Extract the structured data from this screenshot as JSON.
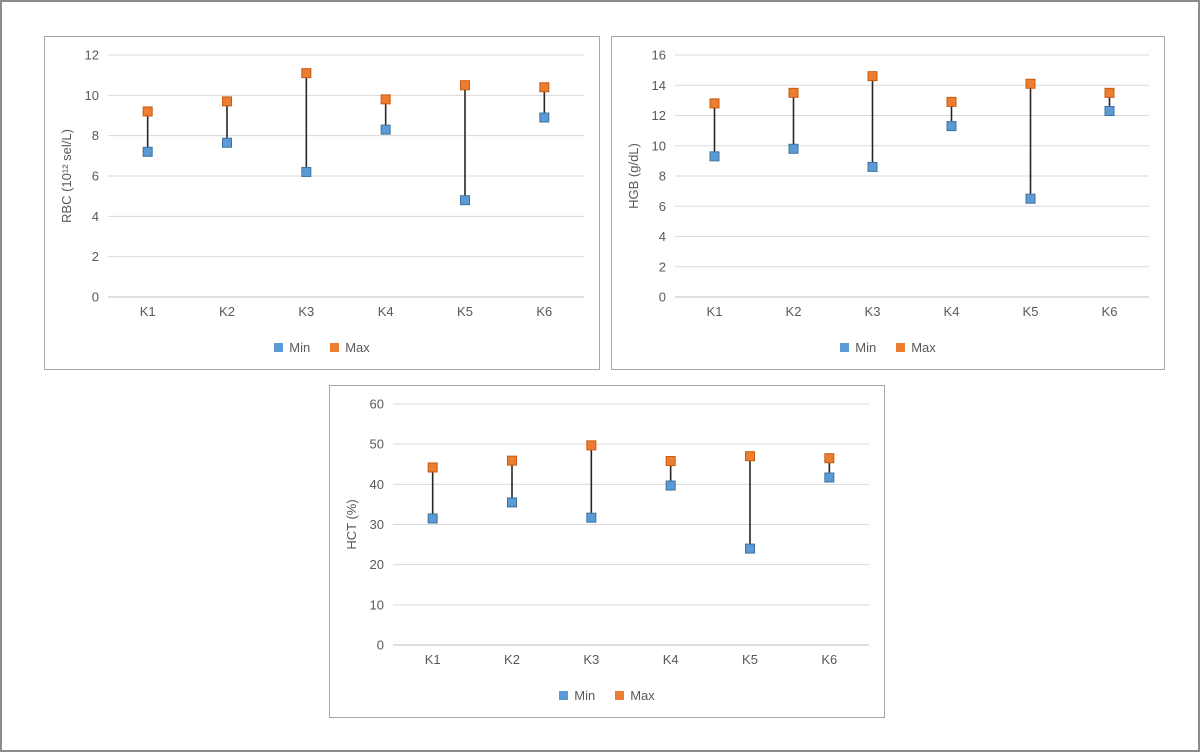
{
  "page": {
    "background": "#ffffff",
    "frame_color": "#8c8c8c"
  },
  "colors": {
    "min_fill": "#5b9bd5",
    "min_border": "#41719c",
    "max_fill": "#ed7d31",
    "max_border": "#c55a11",
    "hilo_line": "#262626",
    "grid": "#d9d9d9",
    "zero_axis": "#bfbfbf",
    "axis_text": "#595959",
    "chart_border": "#a6a6a6"
  },
  "chart_data": [
    {
      "id": "rbc",
      "type": "scatter",
      "subtype": "high-low-marker",
      "title": "",
      "ylabel": "RBC (10¹² sel/L)",
      "xlabel": "",
      "categories": [
        "K1",
        "K2",
        "K3",
        "K4",
        "K5",
        "K6"
      ],
      "series": [
        {
          "name": "Min",
          "values": [
            7.2,
            7.65,
            6.2,
            8.3,
            4.8,
            8.9
          ]
        },
        {
          "name": "Max",
          "values": [
            9.2,
            9.7,
            11.1,
            9.8,
            10.5,
            10.4
          ]
        }
      ],
      "ylim": [
        0,
        12
      ],
      "ystep": 2,
      "grid": true,
      "legend_position": "bottom"
    },
    {
      "id": "hgb",
      "type": "scatter",
      "subtype": "high-low-marker",
      "title": "",
      "ylabel": "HGB (g/dL)",
      "xlabel": "",
      "categories": [
        "K1",
        "K2",
        "K3",
        "K4",
        "K5",
        "K6"
      ],
      "series": [
        {
          "name": "Min",
          "values": [
            9.3,
            9.8,
            8.6,
            11.3,
            6.5,
            12.3
          ]
        },
        {
          "name": "Max",
          "values": [
            12.8,
            13.5,
            14.6,
            12.9,
            14.1,
            13.5
          ]
        }
      ],
      "ylim": [
        0,
        16
      ],
      "ystep": 2,
      "grid": true,
      "legend_position": "bottom"
    },
    {
      "id": "hct",
      "type": "scatter",
      "subtype": "high-low-marker",
      "title": "",
      "ylabel": "HCT (%)",
      "xlabel": "",
      "categories": [
        "K1",
        "K2",
        "K3",
        "K4",
        "K5",
        "K6"
      ],
      "series": [
        {
          "name": "Min",
          "values": [
            31.5,
            35.5,
            31.7,
            39.7,
            24,
            41.7
          ]
        },
        {
          "name": "Max",
          "values": [
            44.2,
            45.9,
            49.7,
            45.8,
            47,
            46.5
          ]
        }
      ],
      "ylim": [
        0,
        60
      ],
      "ystep": 10,
      "grid": true,
      "legend_position": "bottom"
    }
  ]
}
